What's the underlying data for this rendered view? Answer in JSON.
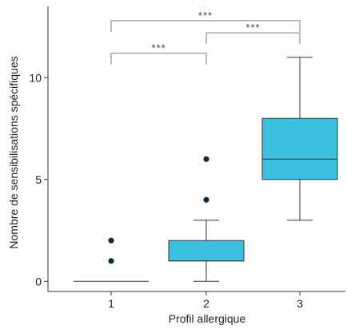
{
  "chart_data": {
    "type": "box",
    "title": "",
    "xlabel": "Profil allergique",
    "ylabel": "Nombre de sensibilisations spécifiques",
    "categories": [
      "1",
      "2",
      "3"
    ],
    "ylim": [
      -0.5,
      13.5
    ],
    "yticks": [
      0,
      5,
      10
    ],
    "grid": false,
    "box_color": "#3dbfe0",
    "edge_color": "#333333",
    "outlier_color": "#0d2b45",
    "boxes": [
      {
        "category": "1",
        "whisker_low": 0,
        "q1": 0,
        "median": 0,
        "q3": 0,
        "whisker_high": 0,
        "outliers": [
          1,
          2
        ]
      },
      {
        "category": "2",
        "whisker_low": 0,
        "q1": 1,
        "median": 1,
        "q3": 2,
        "whisker_high": 3,
        "outliers": [
          4,
          6
        ]
      },
      {
        "category": "3",
        "whisker_low": 3,
        "q1": 5,
        "median": 6,
        "q3": 8,
        "whisker_high": 11,
        "outliers": []
      }
    ],
    "significance": [
      {
        "from": "1",
        "to": "2",
        "label": "***",
        "y": 11.2
      },
      {
        "from": "2",
        "to": "3",
        "label": "***",
        "y": 12.2
      },
      {
        "from": "1",
        "to": "3",
        "label": "***",
        "y": 12.8
      }
    ]
  }
}
